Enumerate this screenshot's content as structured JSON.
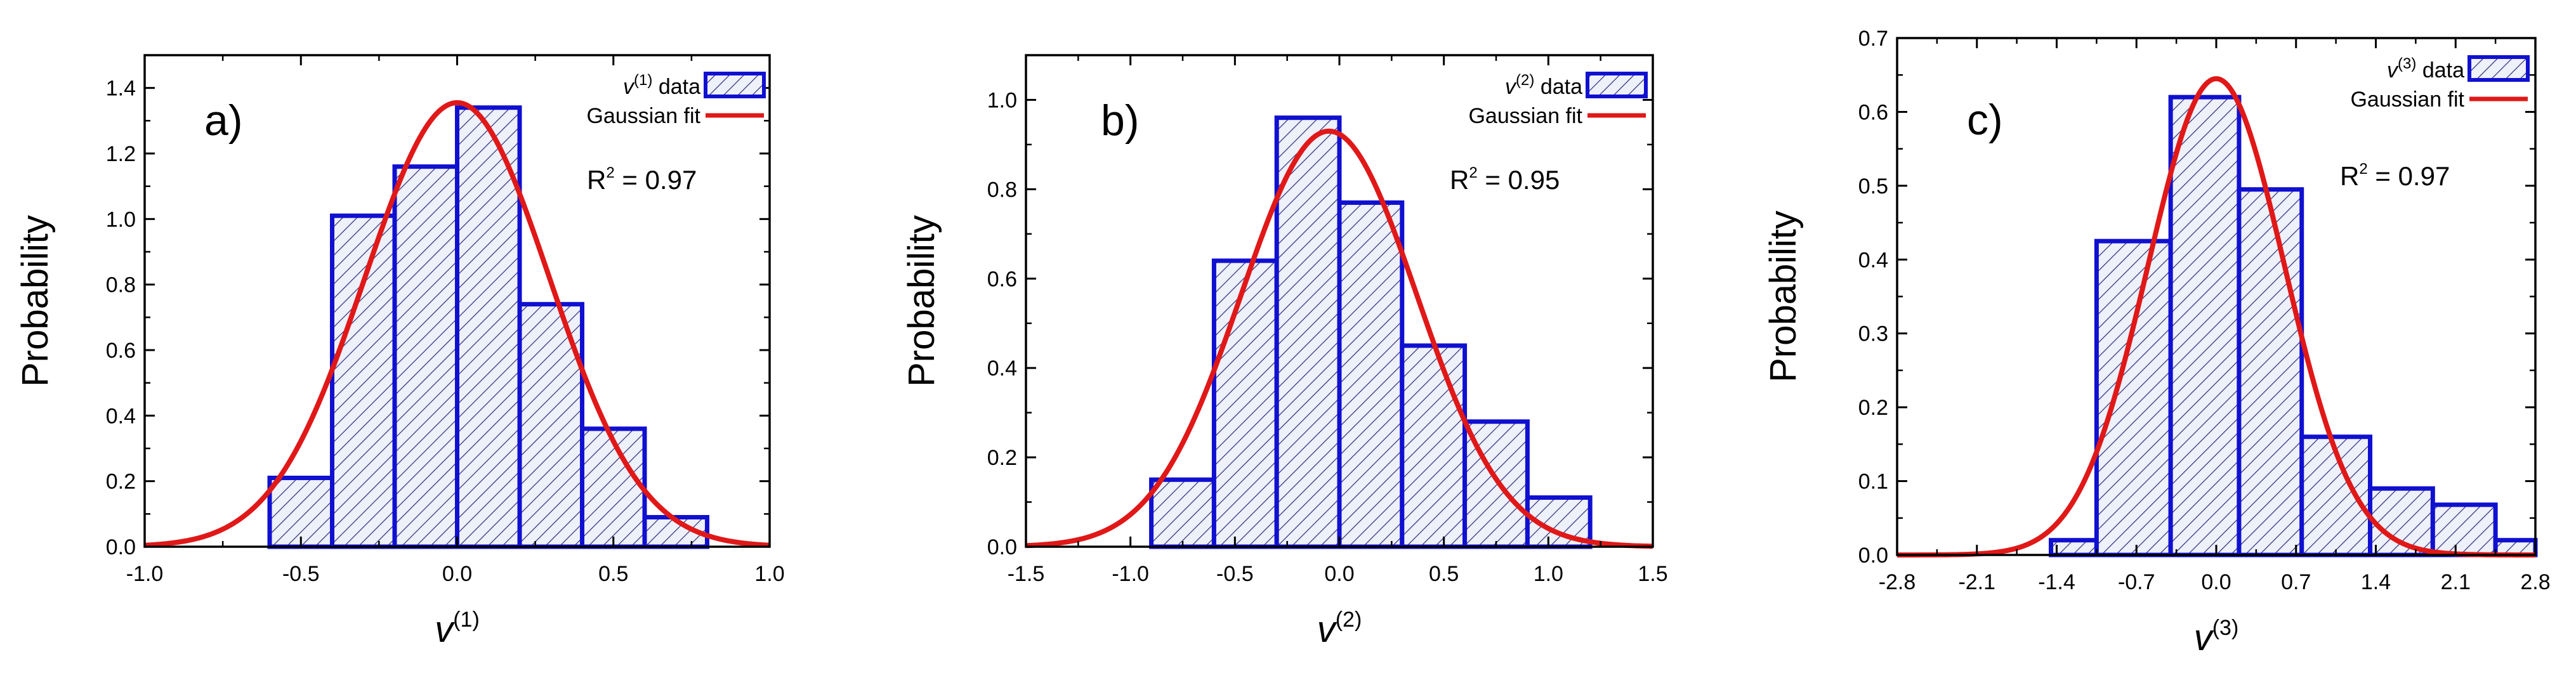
{
  "colors": {
    "bar_edge": "#1010d0",
    "bar_fill": "#eef0fa",
    "hatch": "#2a2a78",
    "fit_line": "#e01818",
    "axis": "#000000"
  },
  "chart_data": [
    {
      "type": "bar",
      "panel_label": "a)",
      "xlabel": "v",
      "xlabel_sup": "(1)",
      "ylabel": "Probability",
      "xlim": [
        -1.0,
        1.0
      ],
      "ylim": [
        0.0,
        1.5
      ],
      "xticks": [
        -1.0,
        -0.5,
        0.0,
        0.5,
        1.0
      ],
      "xtick_labels": [
        "-1.0",
        "-0.5",
        "0.0",
        "0.5",
        "1.0"
      ],
      "yticks": [
        0.0,
        0.2,
        0.4,
        0.6,
        0.8,
        1.0,
        1.2,
        1.4
      ],
      "ytick_labels": [
        "0.0",
        "0.2",
        "0.4",
        "0.6",
        "0.8",
        "1.0",
        "1.2",
        "1.4"
      ],
      "bin_edges": [
        -0.6,
        -0.4,
        -0.2,
        0.0,
        0.2,
        0.4,
        0.6,
        0.8
      ],
      "values": [
        0.21,
        1.01,
        1.16,
        1.34,
        0.74,
        0.36,
        0.09
      ],
      "fit": {
        "type": "gaussian",
        "mean": 0.0,
        "sigma": 0.295,
        "peak": 1.355
      },
      "legend": {
        "data_label": "v",
        "data_label_sup": "(1)",
        "data_label_suffix": " data",
        "fit_label": "Gaussian fit"
      },
      "r2_label": "R",
      "r2_sup": "2",
      "r2_value": " = 0.97"
    },
    {
      "type": "bar",
      "panel_label": "b)",
      "xlabel": "v",
      "xlabel_sup": "(2)",
      "ylabel": "Probability",
      "xlim": [
        -1.5,
        1.5
      ],
      "ylim": [
        0.0,
        1.1
      ],
      "xticks": [
        -1.5,
        -1.0,
        -0.5,
        0.0,
        0.5,
        1.0,
        1.5
      ],
      "xtick_labels": [
        "-1.5",
        "-1.0",
        "-0.5",
        "0.0",
        "0.5",
        "1.0",
        "1.5"
      ],
      "yticks": [
        0.0,
        0.2,
        0.4,
        0.6,
        0.8,
        1.0
      ],
      "ytick_labels": [
        "0.0",
        "0.2",
        "0.4",
        "0.6",
        "0.8",
        "1.0"
      ],
      "bin_edges": [
        -0.9,
        -0.6,
        -0.3,
        0.0,
        0.3,
        0.6,
        0.9,
        1.2
      ],
      "values": [
        0.15,
        0.64,
        0.96,
        0.77,
        0.45,
        0.28,
        0.11
      ],
      "fit": {
        "type": "gaussian",
        "mean": -0.05,
        "sigma": 0.42,
        "peak": 0.93
      },
      "legend": {
        "data_label": "v",
        "data_label_sup": "(2)",
        "data_label_suffix": " data",
        "fit_label": "Gaussian fit"
      },
      "r2_label": "R",
      "r2_sup": "2",
      "r2_value": " = 0.95"
    },
    {
      "type": "bar",
      "panel_label": "c)",
      "xlabel": "v",
      "xlabel_sup": "(3)",
      "ylabel": "Probability",
      "xlim": [
        -2.8,
        2.8
      ],
      "ylim": [
        0.0,
        0.7
      ],
      "xticks": [
        -2.8,
        -2.1,
        -1.4,
        -0.7,
        0.0,
        0.7,
        1.4,
        2.1,
        2.8
      ],
      "xtick_labels": [
        "-2.8",
        "-2.1",
        "-1.4",
        "-0.7",
        "0.0",
        "0.7",
        "1.4",
        "2.1",
        "2.8"
      ],
      "yticks": [
        0.0,
        0.1,
        0.2,
        0.3,
        0.4,
        0.5,
        0.6,
        0.7
      ],
      "ytick_labels": [
        "0.0",
        "0.1",
        "0.2",
        "0.3",
        "0.4",
        "0.5",
        "0.6",
        "0.7"
      ],
      "bin_edges": [
        -1.45,
        -1.05,
        -0.4,
        0.2,
        0.75,
        1.35,
        1.9,
        2.45,
        2.8
      ],
      "values": [
        0.02,
        0.425,
        0.62,
        0.495,
        0.16,
        0.09,
        0.068,
        0.02
      ],
      "fit": {
        "type": "gaussian",
        "mean": 0.0,
        "sigma": 0.6,
        "peak": 0.645
      },
      "legend": {
        "data_label": "v",
        "data_label_sup": "(3)",
        "data_label_suffix": " data",
        "fit_label": "Gaussian fit"
      },
      "r2_label": "R",
      "r2_sup": "2",
      "r2_value": " = 0.97"
    }
  ]
}
